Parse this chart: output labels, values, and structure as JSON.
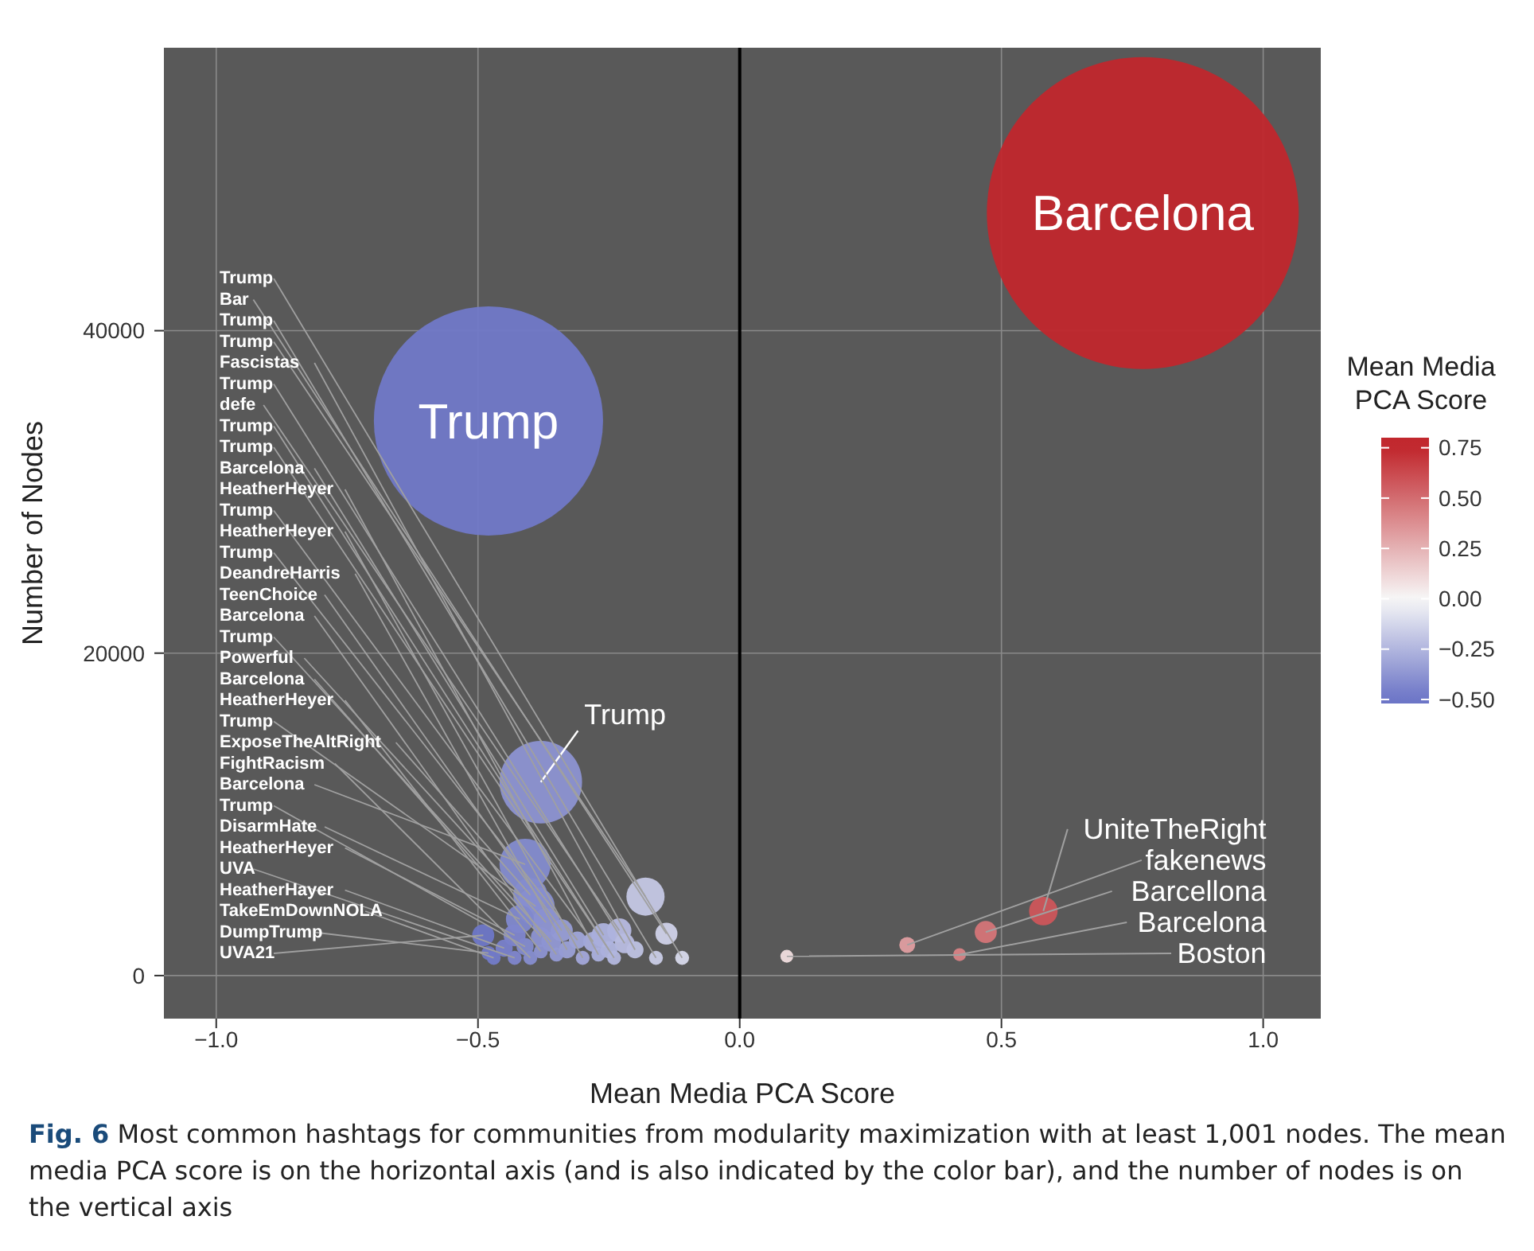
{
  "chart_data": {
    "type": "bubble",
    "xlabel": "Mean Media PCA Score",
    "ylabel": "Number of Nodes",
    "clabel": "Mean Media PCA Score",
    "x": [
      -0.11,
      -0.14,
      -0.16,
      -0.18,
      -0.2,
      -0.22,
      -0.23,
      -0.24,
      -0.25,
      -0.26,
      -0.27,
      -0.28,
      -0.3,
      -0.31,
      -0.33,
      -0.34,
      -0.35,
      -0.36,
      -0.37,
      -0.38,
      -0.38,
      -0.39,
      -0.4,
      -0.4,
      -0.41,
      -0.41,
      -0.42,
      -0.43,
      -0.43,
      -0.45,
      -0.47,
      -0.48,
      -0.49,
      -0.38,
      -0.48,
      0.77,
      0.58,
      0.32,
      0.47,
      0.42,
      0.09
    ],
    "values": [
      1100,
      2600,
      1100,
      4900,
      1600,
      2000,
      2800,
      1100,
      1600,
      2500,
      1300,
      2100,
      1100,
      2200,
      1600,
      2800,
      1300,
      2100,
      3300,
      2400,
      1500,
      4300,
      5000,
      1100,
      6900,
      1800,
      3500,
      2500,
      1100,
      1700,
      1100,
      1400,
      2500,
      12000,
      34400,
      47300,
      4000,
      1900,
      2700,
      1300,
      1200
    ],
    "sizes": [
      0.002,
      0.005,
      0.002,
      0.015,
      0.003,
      0.004,
      0.006,
      0.002,
      0.003,
      0.006,
      0.002,
      0.004,
      0.002,
      0.003,
      0.003,
      0.005,
      0.002,
      0.004,
      0.008,
      0.004,
      0.002,
      0.015,
      0.012,
      0.002,
      0.027,
      0.003,
      0.008,
      0.005,
      0.002,
      0.003,
      0.002,
      0.002,
      0.005,
      0.07,
      0.54,
      1,
      0.0084,
      0.0026,
      0.005,
      0.0017,
      0.0017
    ],
    "cvalues": [
      -0.11,
      -0.14,
      -0.16,
      -0.18,
      -0.2,
      -0.22,
      -0.23,
      -0.24,
      -0.25,
      -0.26,
      -0.27,
      -0.28,
      -0.3,
      -0.31,
      -0.33,
      -0.34,
      -0.35,
      -0.36,
      -0.37,
      -0.38,
      -0.38,
      -0.39,
      -0.4,
      -0.4,
      -0.41,
      -0.41,
      -0.42,
      -0.43,
      -0.43,
      -0.45,
      -0.47,
      -0.48,
      -0.49,
      -0.38,
      -0.48,
      0.77,
      0.58,
      0.32,
      0.47,
      0.42,
      0.09
    ],
    "xlim": [
      -1.1,
      1.11
    ],
    "ylim": [
      -2670,
      57550
    ],
    "xticks": [
      {
        "value": -1,
        "label": "−1.0"
      },
      {
        "value": -0.5,
        "label": "−0.5"
      },
      {
        "value": 0,
        "label": "0.0"
      },
      {
        "value": 0.5,
        "label": "0.5"
      },
      {
        "value": 1,
        "label": "1.0"
      }
    ],
    "yticks": [
      0,
      20000,
      40000
    ],
    "clim": [
      -0.52,
      0.8
    ],
    "cticks": [
      {
        "value": 0.75,
        "label": "0.75"
      },
      {
        "value": 0.5,
        "label": "0.50"
      },
      {
        "value": 0.25,
        "label": "0.25"
      },
      {
        "value": 0,
        "label": "0.00"
      },
      {
        "value": -0.25,
        "label": "−0.25"
      },
      {
        "value": -0.5,
        "label": "−0.50"
      }
    ],
    "grid": true,
    "ref_lines": [
      {
        "axis": "x",
        "value": 0,
        "color": "#000000"
      }
    ],
    "annotations": [
      {
        "text": "Trump",
        "x": -0.11,
        "y": 1100
      },
      {
        "text": "Bar",
        "x": -0.14,
        "y": 2600
      },
      {
        "text": "Trump",
        "x": -0.16,
        "y": 1100
      },
      {
        "text": "Trump",
        "x": -0.18,
        "y": 4900
      },
      {
        "text": "Fascistas",
        "x": -0.2,
        "y": 1600
      },
      {
        "text": "Trump",
        "x": -0.22,
        "y": 2000
      },
      {
        "text": "defe",
        "x": -0.23,
        "y": 2800
      },
      {
        "text": "Trump",
        "x": -0.24,
        "y": 1100
      },
      {
        "text": "Trump",
        "x": -0.25,
        "y": 1600
      },
      {
        "text": "Barcelona",
        "x": -0.26,
        "y": 2500
      },
      {
        "text": "HeatherHeyer",
        "x": -0.27,
        "y": 1300
      },
      {
        "text": "Trump",
        "x": -0.28,
        "y": 2100
      },
      {
        "text": "HeatherHeyer",
        "x": -0.3,
        "y": 1100
      },
      {
        "text": "Trump",
        "x": -0.31,
        "y": 2200
      },
      {
        "text": "DeandreHarris",
        "x": -0.33,
        "y": 1600
      },
      {
        "text": "TeenChoice",
        "x": -0.34,
        "y": 2800
      },
      {
        "text": "Barcelona",
        "x": -0.35,
        "y": 1300
      },
      {
        "text": "Trump",
        "x": -0.36,
        "y": 2100
      },
      {
        "text": "Powerful",
        "x": -0.37,
        "y": 3300
      },
      {
        "text": "Barcelona",
        "x": -0.38,
        "y": 2400
      },
      {
        "text": "HeatherHeyer",
        "x": -0.38,
        "y": 1500
      },
      {
        "text": "Trump",
        "x": -0.39,
        "y": 4300
      },
      {
        "text": "ExposeTheAltRight",
        "x": -0.4,
        "y": 5000
      },
      {
        "text": "FightRacism",
        "x": -0.4,
        "y": 1100
      },
      {
        "text": "Barcelona",
        "x": -0.41,
        "y": 6900
      },
      {
        "text": "Trump",
        "x": -0.41,
        "y": 1800
      },
      {
        "text": "DisarmHate",
        "x": -0.42,
        "y": 3500
      },
      {
        "text": "HeatherHeyer",
        "x": -0.43,
        "y": 2500
      },
      {
        "text": "UVA",
        "x": -0.43,
        "y": 1100
      },
      {
        "text": "HeatherHayer",
        "x": -0.45,
        "y": 1700
      },
      {
        "text": "TakeEmDownNOLA",
        "x": -0.47,
        "y": 1100
      },
      {
        "text": "DumpTrump",
        "x": -0.48,
        "y": 1400
      },
      {
        "text": "UVA21",
        "x": -0.49,
        "y": 2500
      },
      {
        "text": "Trump",
        "x": -0.38,
        "y": 12000
      },
      {
        "text": "Trump",
        "x": -0.48,
        "y": 34400
      },
      {
        "text": "Barcelona",
        "x": 0.77,
        "y": 47300
      },
      {
        "text": "UniteTheRight",
        "x": 0.58,
        "y": 4000
      },
      {
        "text": "fakenews",
        "x": 0.32,
        "y": 1900
      },
      {
        "text": "Barcellona",
        "x": 0.47,
        "y": 2700
      },
      {
        "text": "Barcelona",
        "x": 0.42,
        "y": 1300
      },
      {
        "text": "Boston",
        "x": 0.09,
        "y": 1200
      },
      "Fig. 6  Most common hashtags for communities from modularity maximization with at least 1,001 nodes. The mean media PCA score is on the horizontal axis (and is also indicated by the color bar), and the number of nodes is on the vertical axis"
    ]
  }
}
